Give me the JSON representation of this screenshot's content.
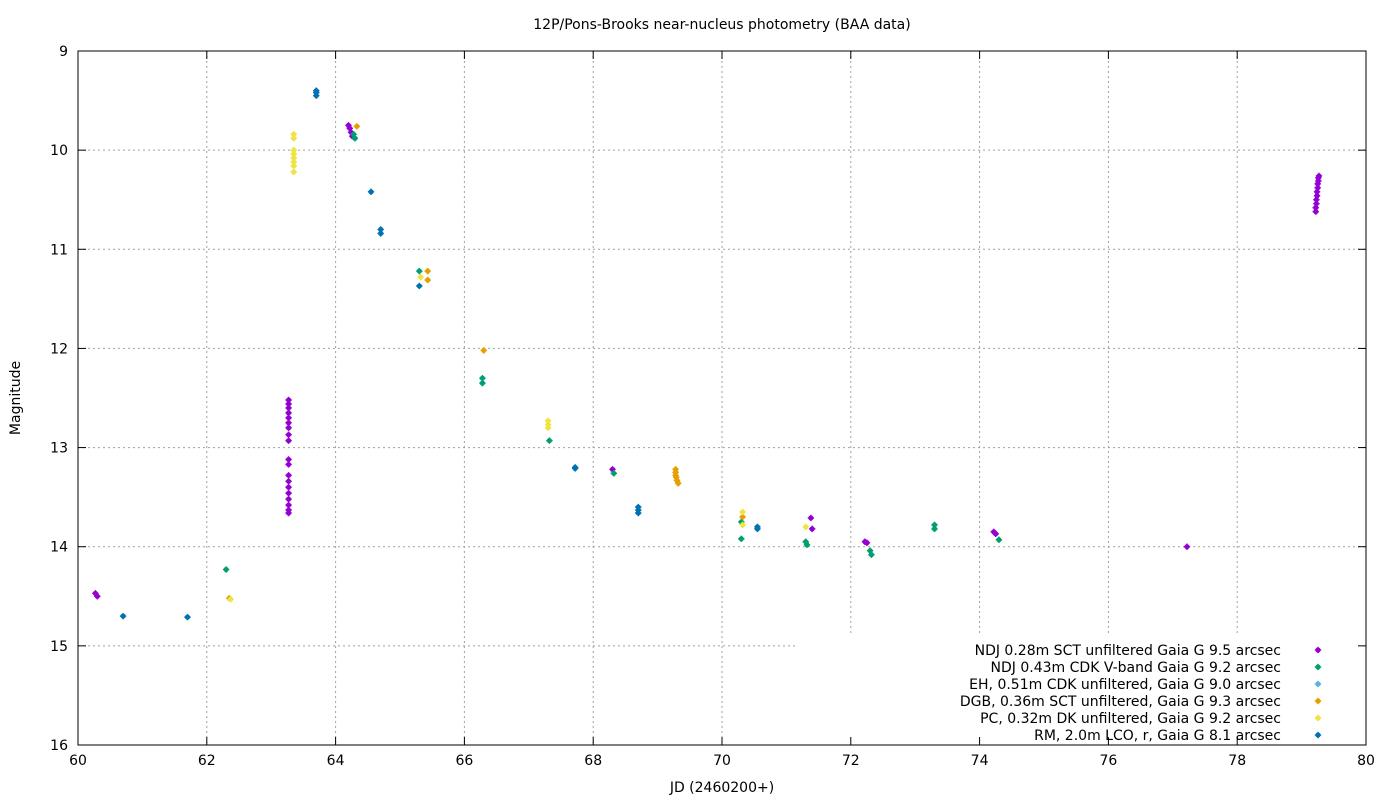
{
  "chart_data": {
    "type": "scatter",
    "title": "12P/Pons-Brooks near-nucleus photometry (BAA data)",
    "xlabel": "JD (2460200+)",
    "ylabel": "Magnitude",
    "xlim": [
      60,
      80
    ],
    "ylim": [
      16,
      9
    ],
    "y_inverted": true,
    "xticks": [
      60,
      62,
      64,
      66,
      68,
      70,
      72,
      74,
      76,
      78,
      80
    ],
    "yticks": [
      9,
      10,
      11,
      12,
      13,
      14,
      15,
      16
    ],
    "grid": true,
    "legend_position": "bottom-right",
    "series": [
      {
        "name": "NDJ 0.28m SCT unfiltered Gaia G 9.5 arcsec",
        "color": "#9400d3",
        "points": [
          [
            60.27,
            14.47
          ],
          [
            60.3,
            14.5
          ],
          [
            63.27,
            12.52
          ],
          [
            63.27,
            12.56
          ],
          [
            63.27,
            12.6
          ],
          [
            63.27,
            12.65
          ],
          [
            63.27,
            12.7
          ],
          [
            63.27,
            12.75
          ],
          [
            63.27,
            12.8
          ],
          [
            63.27,
            12.87
          ],
          [
            63.27,
            12.93
          ],
          [
            63.27,
            13.12
          ],
          [
            63.27,
            13.17
          ],
          [
            63.27,
            13.28
          ],
          [
            63.27,
            13.34
          ],
          [
            63.27,
            13.4
          ],
          [
            63.27,
            13.46
          ],
          [
            63.27,
            13.52
          ],
          [
            63.27,
            13.58
          ],
          [
            63.27,
            13.63
          ],
          [
            63.27,
            13.66
          ],
          [
            64.2,
            9.75
          ],
          [
            64.22,
            9.78
          ],
          [
            64.24,
            9.82
          ],
          [
            64.26,
            9.86
          ],
          [
            68.3,
            13.22
          ],
          [
            71.38,
            13.71
          ],
          [
            71.4,
            13.82
          ],
          [
            72.22,
            13.95
          ],
          [
            72.25,
            13.96
          ],
          [
            74.22,
            13.85
          ],
          [
            74.25,
            13.87
          ],
          [
            77.22,
            14.0
          ],
          [
            79.22,
            10.62
          ],
          [
            79.22,
            10.58
          ],
          [
            79.23,
            10.54
          ],
          [
            79.23,
            10.5
          ],
          [
            79.24,
            10.46
          ],
          [
            79.24,
            10.42
          ],
          [
            79.25,
            10.38
          ],
          [
            79.25,
            10.34
          ],
          [
            79.26,
            10.31
          ],
          [
            79.26,
            10.28
          ],
          [
            79.27,
            10.26
          ]
        ]
      },
      {
        "name": "NDJ 0.43m CDK V-band Gaia G 9.2 arcsec",
        "color": "#009e73",
        "points": [
          [
            62.3,
            14.23
          ],
          [
            64.28,
            9.84
          ],
          [
            64.3,
            9.88
          ],
          [
            65.3,
            11.22
          ],
          [
            66.28,
            12.3
          ],
          [
            66.28,
            12.35
          ],
          [
            67.32,
            12.93
          ],
          [
            68.32,
            13.26
          ],
          [
            70.3,
            13.75
          ],
          [
            70.3,
            13.92
          ],
          [
            71.3,
            13.95
          ],
          [
            71.32,
            13.98
          ],
          [
            72.3,
            14.04
          ],
          [
            72.32,
            14.08
          ],
          [
            73.3,
            13.78
          ],
          [
            73.3,
            13.82
          ],
          [
            74.3,
            13.93
          ]
        ]
      },
      {
        "name": "EH, 0.51m CDK unfiltered, Gaia G 9.0 arcsec",
        "color": "#56b4e9",
        "points": []
      },
      {
        "name": "DGB, 0.36m SCT unfiltered, Gaia G 9.3 arcsec",
        "color": "#e69f00",
        "points": [
          [
            62.35,
            14.52
          ],
          [
            64.33,
            9.76
          ],
          [
            65.43,
            11.22
          ],
          [
            65.43,
            11.31
          ],
          [
            66.3,
            12.02
          ],
          [
            69.28,
            13.22
          ],
          [
            69.28,
            13.25
          ],
          [
            69.28,
            13.28
          ],
          [
            69.29,
            13.3
          ],
          [
            69.3,
            13.33
          ],
          [
            69.32,
            13.36
          ],
          [
            70.32,
            13.7
          ]
        ]
      },
      {
        "name": "PC, 0.32m DK unfiltered, Gaia G 9.2 arcsec",
        "color": "#f0e442",
        "points": [
          [
            62.37,
            14.53
          ],
          [
            63.35,
            9.84
          ],
          [
            63.35,
            9.88
          ],
          [
            63.35,
            10.0
          ],
          [
            63.35,
            10.04
          ],
          [
            63.35,
            10.08
          ],
          [
            63.35,
            10.12
          ],
          [
            63.35,
            10.16
          ],
          [
            63.35,
            10.22
          ],
          [
            65.32,
            11.28
          ],
          [
            67.3,
            12.73
          ],
          [
            67.3,
            12.77
          ],
          [
            67.3,
            12.8
          ],
          [
            70.32,
            13.65
          ],
          [
            70.32,
            13.78
          ],
          [
            71.3,
            13.8
          ]
        ]
      },
      {
        "name": "RM, 2.0m LCO, r, Gaia G 8.1 arcsec",
        "color": "#0072b2",
        "points": [
          [
            60.7,
            14.7
          ],
          [
            61.7,
            14.71
          ],
          [
            63.7,
            9.4
          ],
          [
            63.7,
            9.42
          ],
          [
            63.7,
            9.45
          ],
          [
            64.55,
            10.42
          ],
          [
            64.7,
            10.8
          ],
          [
            64.7,
            10.84
          ],
          [
            65.3,
            11.37
          ],
          [
            67.72,
            13.2
          ],
          [
            67.72,
            13.21
          ],
          [
            68.7,
            13.6
          ],
          [
            68.7,
            13.63
          ],
          [
            68.7,
            13.66
          ],
          [
            70.55,
            13.8
          ],
          [
            70.55,
            13.82
          ]
        ]
      }
    ]
  }
}
